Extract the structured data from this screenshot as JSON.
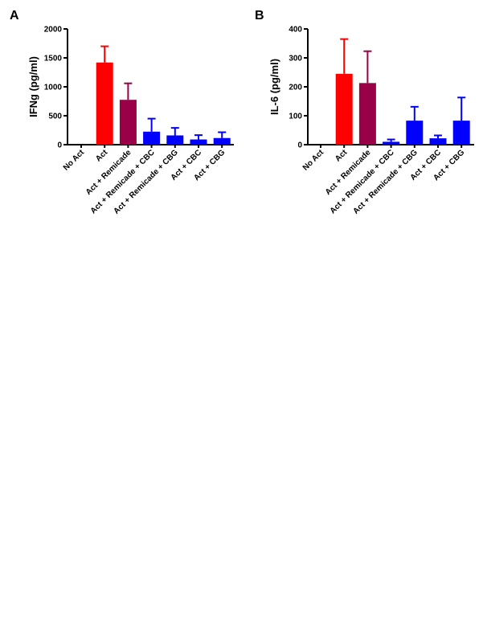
{
  "chart_data": [
    {
      "type": "bar",
      "panel": "A",
      "ylabel": "IFNg (pg/ml)",
      "ylim": [
        0,
        2000
      ],
      "yticks": [
        0,
        500,
        1000,
        1500,
        2000
      ],
      "categories": [
        "No Act",
        "Act",
        "Act + Remicade",
        "Act + Remicade + CBC",
        "Act + Remicade + CBG",
        "Act + CBC",
        "Act + CBG"
      ],
      "values": [
        0,
        1420,
        775,
        225,
        160,
        90,
        115
      ],
      "errors": [
        0,
        280,
        285,
        225,
        130,
        75,
        100
      ],
      "colors": [
        "#ff0000",
        "#ff0000",
        "#990047",
        "#0000ff",
        "#0000ff",
        "#0000ff",
        "#0000ff"
      ],
      "grid": false
    },
    {
      "type": "bar",
      "panel": "B",
      "ylabel": "IL-6 (pg/ml)",
      "ylim": [
        0,
        400
      ],
      "yticks": [
        0,
        100,
        200,
        300,
        400
      ],
      "categories": [
        "No Act",
        "Act",
        "Act + Remicade",
        "Act + Remicade + CBC",
        "Act + Remicade + CBG",
        "Act + CBC",
        "Act + CBG"
      ],
      "values": [
        0,
        245,
        213,
        10,
        83,
        22,
        83
      ],
      "errors": [
        0,
        120,
        110,
        8,
        48,
        10,
        80
      ],
      "colors": [
        "#ff0000",
        "#ff0000",
        "#990047",
        "#0000ff",
        "#0000ff",
        "#0000ff",
        "#0000ff"
      ],
      "grid": false
    }
  ]
}
